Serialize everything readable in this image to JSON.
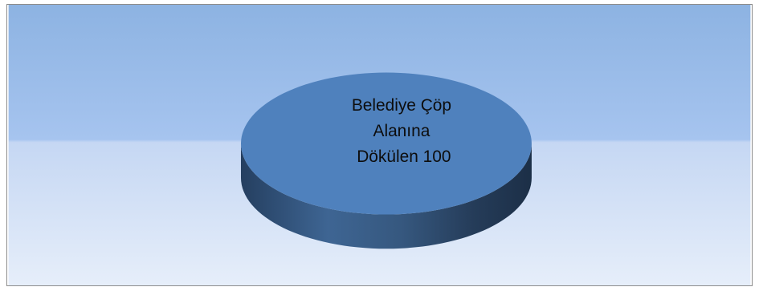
{
  "chart_data": {
    "type": "pie",
    "style": "3d",
    "title": "",
    "slices": [
      {
        "label": "Belediye Çöp Alanına Dökülen",
        "value": 100
      }
    ],
    "data_label_lines": [
      "Belediye Çöp",
      "Alanına",
      "Dökülen 100"
    ],
    "legend": "none",
    "colors": {
      "slice_top": "#4f81bd",
      "slice_side_dark": "#233a5a",
      "slice_side_light": "#3e6593",
      "background_top": "#8db3e2",
      "background_bottom": "#dde8f8"
    }
  }
}
